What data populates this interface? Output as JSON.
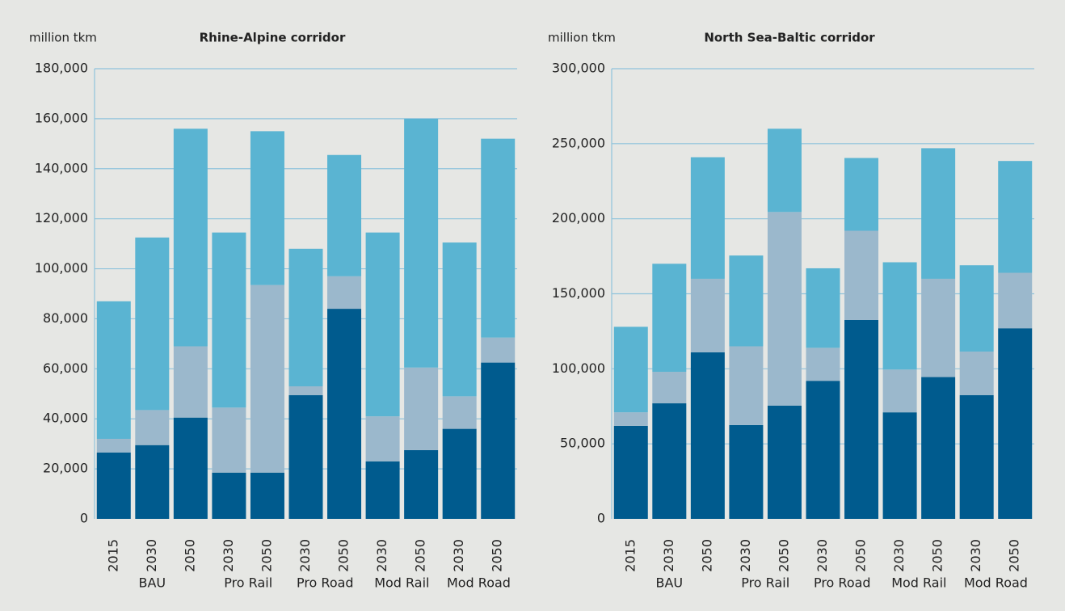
{
  "chart_data": [
    {
      "type": "stacked_bar",
      "title": "Rhine-Alpine corridor",
      "y_label": "million tkm",
      "categories": [
        "2015",
        "2030",
        "2050",
        "2030",
        "2050",
        "2030",
        "2050",
        "2030",
        "2050",
        "2030",
        "2050"
      ],
      "groups": [
        {
          "label": "BAU",
          "count": 3,
          "color": "#222222"
        },
        {
          "label": "Pro Rail",
          "count": 2,
          "color": "#999999"
        },
        {
          "label": "Pro Road",
          "count": 2,
          "color": "#222222"
        },
        {
          "label": "Mod Rail",
          "count": 2,
          "color": "#999999"
        },
        {
          "label": "Mod Road",
          "count": 2,
          "color": "#222222"
        }
      ],
      "series": [
        {
          "color": "#005b8e",
          "values": [
            26500,
            29500,
            40500,
            18500,
            18500,
            49500,
            84000,
            23000,
            27500,
            36000,
            62500
          ]
        },
        {
          "color": "#9bb8cc",
          "values": [
            5500,
            14000,
            28500,
            26000,
            75000,
            3500,
            13000,
            18000,
            33000,
            13000,
            10000
          ]
        },
        {
          "color": "#5ab4d2",
          "values": [
            55000,
            69000,
            87000,
            70000,
            61500,
            55000,
            48500,
            73500,
            99500,
            61500,
            79500
          ]
        }
      ],
      "ylim": [
        0,
        180000
      ],
      "yticks": [
        0,
        {
          "value": 20000,
          "label": "20,000"
        },
        {
          "value": 40000,
          "label": "40,000"
        },
        {
          "value": 60000,
          "label": "60,000"
        },
        {
          "value": 80000,
          "label": "80,000"
        },
        {
          "value": 100000,
          "label": "100,000"
        },
        {
          "value": 120000,
          "label": "120,000"
        },
        {
          "value": 140000,
          "label": "140,000"
        },
        {
          "value": 160000,
          "label": "160,000"
        },
        {
          "value": 180000,
          "label": "180,000"
        }
      ],
      "grid": true
    },
    {
      "type": "stacked_bar",
      "title": "North Sea-Baltic corridor",
      "y_label": "million tkm",
      "categories": [
        "2015",
        "2030",
        "2050",
        "2030",
        "2050",
        "2030",
        "2050",
        "2030",
        "2050",
        "2030",
        "2050"
      ],
      "groups": [
        {
          "label": "BAU",
          "count": 3,
          "color": "#222222"
        },
        {
          "label": "Pro Rail",
          "count": 2,
          "color": "#999999"
        },
        {
          "label": "Pro Road",
          "count": 2,
          "color": "#222222"
        },
        {
          "label": "Mod Rail",
          "count": 2,
          "color": "#999999"
        },
        {
          "label": "Mod Road",
          "count": 2,
          "color": "#222222"
        }
      ],
      "series": [
        {
          "color": "#005b8e",
          "values": [
            62000,
            77000,
            111000,
            62500,
            75500,
            92000,
            132500,
            71000,
            94500,
            82500,
            127000
          ]
        },
        {
          "color": "#9bb8cc",
          "values": [
            9000,
            21000,
            49000,
            52500,
            129000,
            22000,
            59500,
            28500,
            65500,
            29000,
            37000
          ]
        },
        {
          "color": "#5ab4d2",
          "values": [
            57000,
            72000,
            81000,
            60500,
            55500,
            53000,
            48500,
            71500,
            87000,
            57500,
            74500
          ]
        }
      ],
      "ylim": [
        0,
        300000
      ],
      "yticks": [
        0,
        {
          "value": 50000,
          "label": "50,000"
        },
        {
          "value": 100000,
          "label": "100,000"
        },
        {
          "value": 150000,
          "label": "150,000"
        },
        {
          "value": 200000,
          "label": "200,000"
        },
        {
          "value": 250000,
          "label": "250,000"
        },
        {
          "value": 300000,
          "label": "300,000"
        }
      ],
      "grid": true
    }
  ]
}
